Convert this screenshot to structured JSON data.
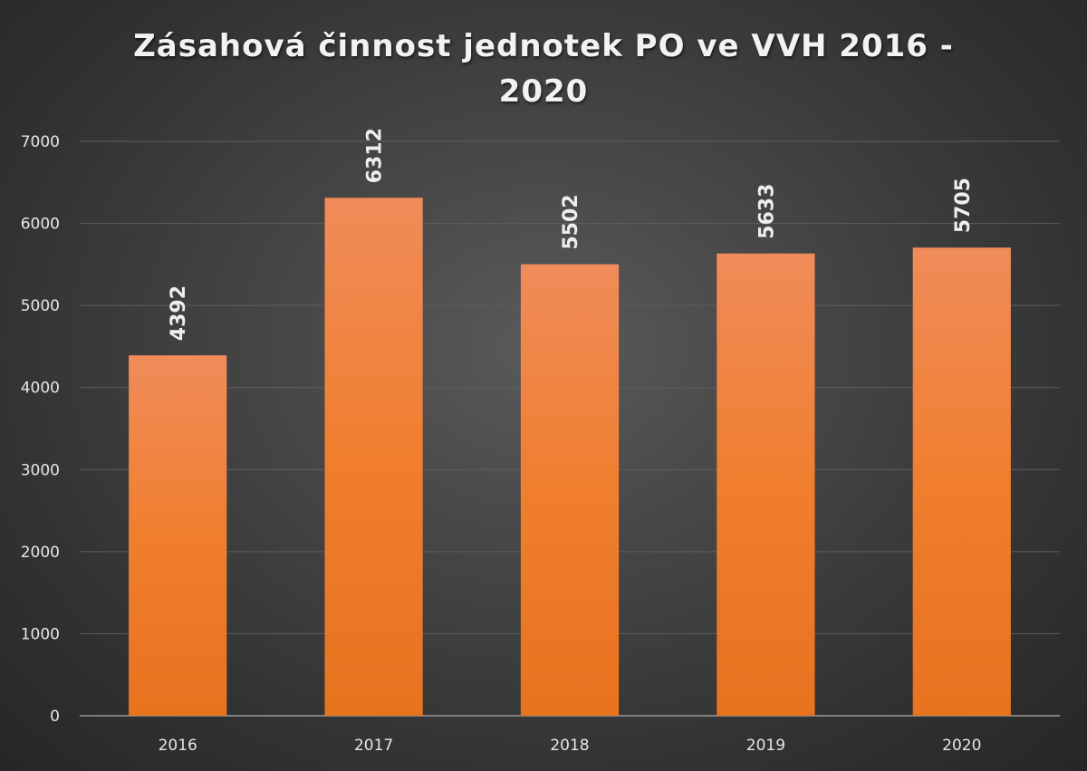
{
  "chart_data": {
    "type": "bar",
    "title": "Zásahová činnost jednotek PO ve VVH 2016 - 2020",
    "categories": [
      "2016",
      "2017",
      "2018",
      "2019",
      "2020"
    ],
    "series": [
      {
        "values": [
          4392,
          6312,
          5502,
          5633,
          5705
        ]
      }
    ],
    "xlabel": "",
    "ylabel": "",
    "ylim": [
      0,
      7000
    ],
    "yticks": [
      "0",
      "1000",
      "2000",
      "3000",
      "4000",
      "5000",
      "6000",
      "7000"
    ],
    "data_labels": [
      "4392",
      "6312",
      "5502",
      "5633",
      "5705"
    ],
    "data_label_orientation": "vertical",
    "grid": true,
    "legend": "none",
    "bar_color_top": "#f08c5a",
    "bar_color_bottom": "#e8731f",
    "background_color": "#3a3a3a",
    "gridline_color": "#5e5e5e",
    "text_color": "#eeeeee"
  }
}
